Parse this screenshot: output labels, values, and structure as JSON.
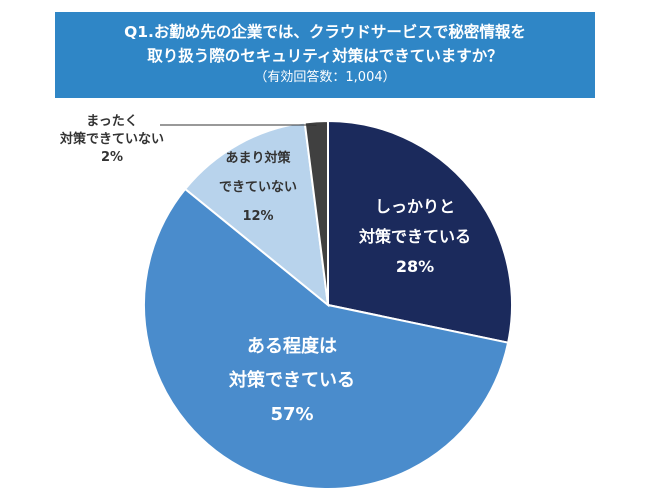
{
  "title": {
    "line1": "Q1.お勤め先の企業では、クラウドサービスで秘密情報を",
    "line2": "取り扱う際のセキュリティ対策はできていますか？",
    "subtitle": "（有効回答数：1,004）"
  },
  "colors": {
    "banner": "#2f86c6",
    "fully": "#1b2a5c",
    "somewhat": "#4a8ccc",
    "barely": "#b8d3ec",
    "not_at_all": "#404040"
  },
  "chart_data": {
    "type": "pie",
    "title": "Q1.お勤め先の企業では、クラウドサービスで秘密情報を取り扱う際のセキュリティ対策はできていますか？",
    "subtitle": "（有効回答数：1,004）",
    "slices": [
      {
        "label_lines": [
          "しっかりと",
          "対策できている"
        ],
        "value": 28,
        "percent_label": "28%",
        "color": "#1b2a5c",
        "text_color": "#ffffff"
      },
      {
        "label_lines": [
          "ある程度は",
          "対策できている"
        ],
        "value": 57,
        "percent_label": "57%",
        "color": "#4a8ccc",
        "text_color": "#ffffff"
      },
      {
        "label_lines": [
          "あまり対策",
          "できていない"
        ],
        "value": 12,
        "percent_label": "12%",
        "color": "#b8d3ec",
        "text_color": "#333333"
      },
      {
        "label_lines": [
          "まったく",
          "対策できていない"
        ],
        "value": 2,
        "percent_label": "2%",
        "color": "#404040",
        "text_color": "#333333"
      }
    ],
    "legend": "none",
    "start": "12 o'clock, clockwise"
  }
}
